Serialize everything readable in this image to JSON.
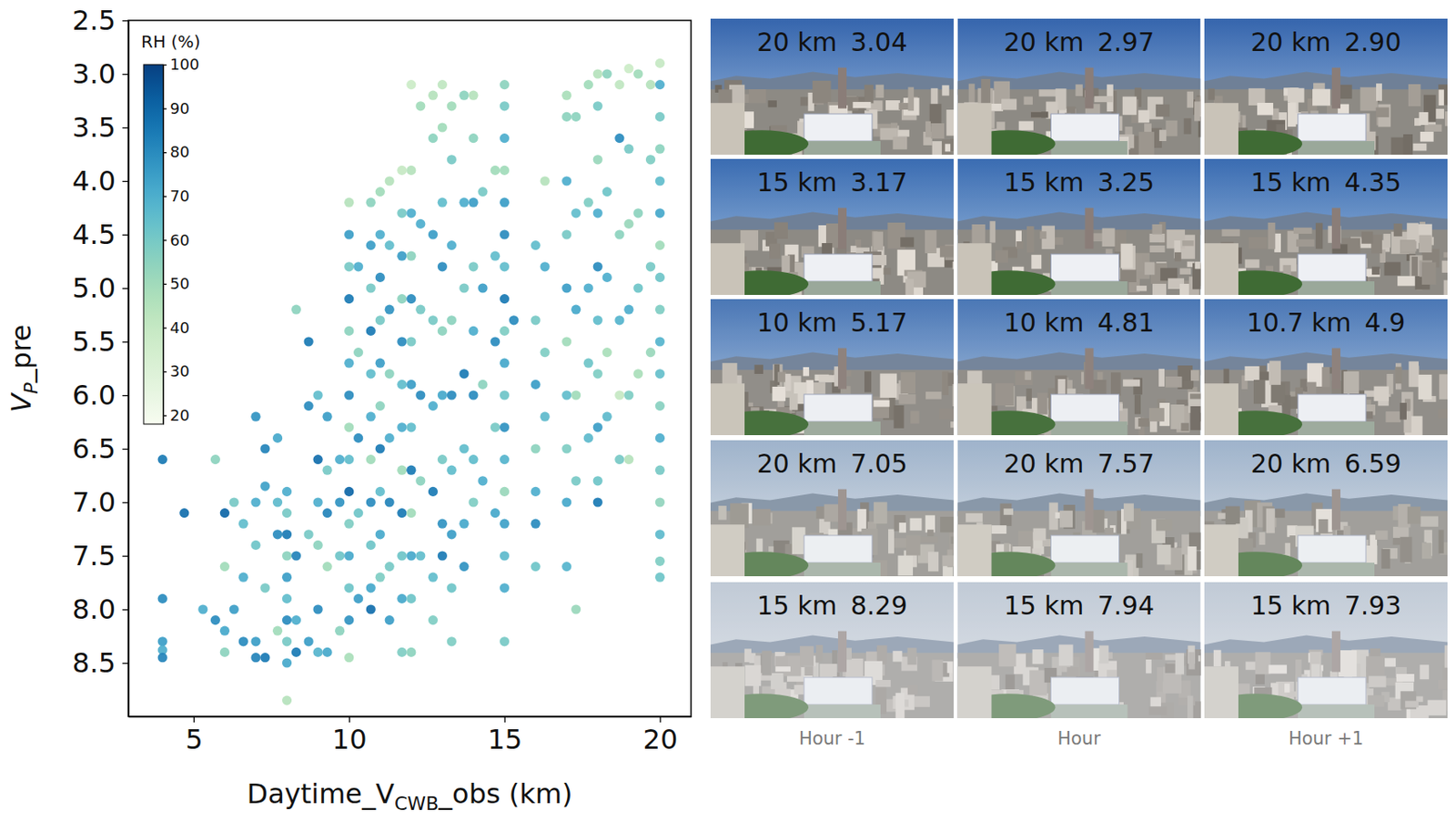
{
  "chart_data": {
    "type": "scatter",
    "xlabel": [
      "Daytime_V",
      "CWB",
      "_obs (km)"
    ],
    "ylabel": [
      "V",
      "P",
      "_pre"
    ],
    "xlim": [
      2.9,
      21.0
    ],
    "xticks": [
      5,
      10,
      15,
      20
    ],
    "ylim": [
      9.0,
      2.5
    ],
    "yticks": [
      2.5,
      {
        "value": 3,
        "label": "3.0"
      },
      3.5,
      {
        "value": 4,
        "label": "4.0"
      },
      4.5,
      {
        "value": 5,
        "label": "5.0"
      },
      5.5,
      {
        "value": 6,
        "label": "6.0"
      },
      6.5,
      {
        "value": 7,
        "label": "7.0"
      },
      7.5,
      {
        "value": 8,
        "label": "8.0"
      },
      8.5
    ],
    "colorbar": {
      "label": "RH (%)",
      "range": [
        18,
        100
      ],
      "ticks": [
        20,
        30,
        40,
        50,
        60,
        70,
        80,
        90,
        100
      ]
    },
    "x": [
      4,
      4,
      4,
      4,
      4,
      4.7,
      5.3,
      5.7,
      5.7,
      6,
      6,
      6,
      6,
      6.3,
      6.3,
      6.6,
      6.6,
      6.6,
      7,
      7,
      7,
      7,
      7,
      7.3,
      7.3,
      7.3,
      7.3,
      7.7,
      7.7,
      7.7,
      7.7,
      8,
      8,
      8,
      8,
      8,
      8,
      8,
      8,
      8,
      8,
      8.3,
      8.3,
      8.3,
      8.3,
      8.7,
      8.7,
      8.7,
      8.7,
      9,
      9,
      9,
      9,
      9,
      9,
      9.3,
      9.3,
      9.3,
      9.3,
      9.3,
      9.7,
      9.7,
      9.7,
      9.7,
      10,
      10,
      10,
      10,
      10,
      10,
      10,
      10,
      10,
      10,
      10,
      10,
      10,
      10,
      10,
      10.3,
      10.3,
      10.3,
      10.3,
      10.3,
      10.7,
      10.7,
      10.7,
      10.7,
      10.7,
      10.7,
      10.7,
      10.7,
      10.7,
      10.7,
      10.7,
      11,
      11,
      11,
      11,
      11,
      11,
      11,
      11,
      11,
      11,
      11.3,
      11.3,
      11.3,
      11.3,
      11.3,
      11.3,
      11.3,
      11.3,
      11.7,
      11.7,
      11.7,
      11.7,
      11.7,
      11.7,
      11.7,
      11.7,
      11.7,
      11.7,
      11.7,
      11.7,
      12,
      12,
      12,
      12,
      12,
      12,
      12,
      12,
      12,
      12,
      12,
      12,
      12,
      12.3,
      12.3,
      12.3,
      12.3,
      12.3,
      12.3,
      12.7,
      12.7,
      12.7,
      12.7,
      12.7,
      12.7,
      12.7,
      12.7,
      13,
      13,
      13,
      13,
      13,
      13,
      13,
      13,
      13,
      13.3,
      13.3,
      13.3,
      13.3,
      13.3,
      13.3,
      13.3,
      13.3,
      13.3,
      13.7,
      13.7,
      13.7,
      13.7,
      13.7,
      13.7,
      13.7,
      14,
      14,
      14,
      14,
      14,
      14,
      14,
      14,
      14.3,
      14.3,
      14.3,
      14.3,
      14.7,
      14.7,
      14.7,
      14.7,
      14.7,
      15,
      15,
      15,
      15,
      15,
      15,
      15,
      15,
      15,
      15,
      15,
      15,
      15,
      15,
      15,
      15,
      15,
      15,
      15.3,
      16,
      16,
      16,
      16,
      16,
      16,
      16,
      16.3,
      16.3,
      16.3,
      16.3,
      17,
      17,
      17,
      17,
      17,
      17,
      17,
      17,
      17,
      17,
      17.3,
      17.3,
      17.3,
      17.3,
      17.3,
      17.3,
      17.7,
      17.7,
      17.7,
      17.7,
      17.7,
      18,
      18,
      18,
      18,
      18,
      18,
      18,
      18,
      18,
      18,
      18.3,
      18.3,
      18.3,
      18.3,
      18.3,
      18.7,
      18.7,
      18.7,
      18.7,
      18.7,
      18.7,
      19,
      19,
      19,
      19,
      19,
      19,
      19.3,
      19.3,
      19.3,
      19.3,
      19.7,
      19.7,
      19.7,
      19.7,
      20,
      20,
      20,
      20,
      20,
      20,
      20,
      20,
      20,
      20,
      20,
      20,
      20,
      20,
      20,
      20,
      20,
      20
    ],
    "values": [
      6.6,
      7.9,
      8.3,
      8.38,
      8.45,
      7.1,
      8.0,
      6.6,
      8.1,
      7.1,
      7.6,
      8.2,
      8.4,
      7.0,
      8.0,
      7.2,
      8.3,
      7.7,
      6.2,
      7.0,
      7.4,
      8.3,
      8.45,
      6.5,
      6.85,
      7.8,
      8.45,
      6.4,
      7.0,
      7.3,
      8.2,
      6.9,
      7.1,
      7.3,
      7.5,
      7.7,
      7.9,
      8.1,
      8.3,
      8.5,
      8.85,
      5.2,
      7.5,
      8.1,
      8.4,
      5.5,
      6.1,
      7.3,
      8.3,
      6.0,
      6.6,
      7.0,
      7.4,
      8.0,
      8.4,
      6.2,
      6.7,
      7.1,
      7.6,
      8.4,
      6.6,
      7.0,
      7.5,
      8.2,
      4.2,
      4.5,
      4.8,
      5.1,
      5.4,
      5.7,
      6.0,
      6.3,
      6.6,
      6.9,
      7.2,
      7.5,
      7.8,
      8.1,
      8.45,
      4.8,
      5.6,
      6.4,
      7.1,
      7.9,
      4.2,
      4.6,
      5.0,
      5.4,
      5.8,
      6.2,
      6.6,
      7.0,
      7.4,
      7.8,
      8.0,
      4.1,
      4.5,
      4.9,
      5.3,
      5.7,
      6.1,
      6.5,
      6.9,
      7.3,
      7.7,
      4.0,
      4.6,
      5.2,
      5.8,
      6.4,
      7.0,
      7.6,
      8.1,
      3.9,
      4.3,
      4.7,
      5.1,
      5.5,
      5.9,
      6.3,
      6.7,
      7.1,
      7.5,
      7.9,
      8.4,
      3.1,
      3.9,
      4.3,
      4.7,
      5.1,
      5.5,
      5.9,
      6.3,
      6.7,
      7.1,
      7.5,
      7.9,
      8.4,
      3.3,
      4.4,
      5.2,
      6.0,
      6.8,
      7.5,
      3.2,
      3.6,
      4.5,
      5.3,
      6.1,
      6.9,
      7.7,
      8.1,
      3.1,
      3.5,
      4.2,
      4.8,
      5.4,
      6.0,
      6.6,
      7.2,
      7.5,
      3.3,
      3.8,
      4.6,
      5.3,
      6.0,
      6.7,
      7.3,
      7.8,
      8.3,
      3.2,
      4.2,
      5.0,
      5.8,
      6.5,
      7.2,
      7.6,
      3.2,
      3.6,
      4.2,
      4.8,
      5.4,
      6.0,
      6.6,
      7.0,
      4.1,
      5.0,
      5.9,
      6.8,
      3.9,
      4.7,
      5.5,
      6.3,
      7.1,
      3.1,
      3.3,
      3.6,
      3.9,
      4.2,
      4.5,
      4.8,
      5.1,
      5.4,
      5.7,
      6.0,
      6.3,
      6.6,
      6.9,
      7.2,
      7.5,
      7.8,
      8.3,
      5.3,
      4.6,
      5.3,
      5.9,
      6.5,
      6.9,
      7.2,
      7.6,
      4.0,
      4.8,
      5.6,
      6.2,
      3.2,
      3.4,
      4.0,
      4.5,
      5.0,
      5.5,
      6.0,
      6.5,
      7.0,
      7.6,
      3.4,
      4.3,
      5.2,
      6.0,
      6.8,
      8.0,
      3.1,
      4.2,
      5.0,
      5.7,
      6.4,
      3.0,
      3.3,
      3.8,
      4.3,
      4.8,
      5.3,
      5.8,
      6.3,
      6.8,
      7.0,
      3.0,
      4.1,
      4.9,
      5.6,
      6.2,
      3.1,
      3.6,
      4.5,
      5.3,
      6.0,
      6.6,
      2.95,
      3.7,
      4.4,
      5.2,
      6.0,
      6.6,
      3.0,
      4.3,
      5.0,
      5.8,
      3.1,
      3.8,
      4.8,
      5.6,
      2.9,
      3.1,
      3.4,
      3.7,
      4.0,
      4.3,
      4.6,
      4.9,
      5.2,
      5.5,
      5.8,
      6.1,
      6.4,
      6.7,
      7.0,
      7.3,
      7.55,
      7.7
    ],
    "rh": [
      85,
      80,
      75,
      70,
      82,
      88,
      70,
      55,
      80,
      90,
      50,
      72,
      55,
      60,
      75,
      65,
      80,
      70,
      78,
      70,
      62,
      75,
      82,
      82,
      74,
      60,
      85,
      72,
      66,
      80,
      50,
      70,
      60,
      85,
      55,
      75,
      65,
      80,
      60,
      72,
      45,
      55,
      82,
      70,
      85,
      85,
      80,
      60,
      75,
      65,
      88,
      70,
      55,
      80,
      68,
      75,
      60,
      82,
      50,
      72,
      70,
      78,
      62,
      55,
      45,
      75,
      60,
      85,
      55,
      70,
      80,
      50,
      65,
      90,
      58,
      72,
      62,
      78,
      48,
      70,
      55,
      80,
      62,
      75,
      55,
      75,
      60,
      85,
      65,
      70,
      50,
      80,
      62,
      72,
      88,
      50,
      70,
      80,
      60,
      75,
      55,
      85,
      65,
      72,
      58,
      45,
      65,
      78,
      55,
      70,
      82,
      60,
      75,
      40,
      60,
      75,
      55,
      80,
      65,
      70,
      50,
      85,
      62,
      72,
      58,
      38,
      45,
      70,
      55,
      80,
      60,
      75,
      65,
      85,
      50,
      72,
      62,
      55,
      50,
      70,
      60,
      80,
      55,
      65,
      45,
      55,
      75,
      60,
      70,
      85,
      65,
      58,
      42,
      50,
      65,
      80,
      55,
      72,
      60,
      78,
      85,
      50,
      60,
      70,
      55,
      80,
      65,
      75,
      62,
      58,
      55,
      70,
      60,
      85,
      65,
      72,
      78,
      45,
      55,
      75,
      60,
      70,
      80,
      65,
      58,
      60,
      75,
      55,
      70,
      50,
      65,
      80,
      60,
      72,
      55,
      60,
      70,
      50,
      75,
      80,
      65,
      85,
      58,
      72,
      62,
      78,
      68,
      52,
      74,
      66,
      70,
      60,
      80,
      65,
      60,
      75,
      55,
      70,
      80,
      62,
      45,
      70,
      58,
      66,
      48,
      55,
      70,
      60,
      75,
      50,
      65,
      58,
      72,
      68,
      55,
      65,
      72,
      50,
      60,
      52,
      50,
      58,
      70,
      62,
      66,
      45,
      60,
      52,
      70,
      80,
      65,
      58,
      75,
      62,
      85,
      55,
      62,
      70,
      48,
      66,
      42,
      80,
      55,
      68,
      40,
      60,
      38,
      60,
      52,
      70,
      58,
      45,
      50,
      55,
      62,
      48,
      45,
      58,
      60,
      52,
      40,
      70,
      60,
      55,
      65,
      72,
      50,
      62,
      58,
      68,
      64,
      56,
      70,
      60,
      54,
      66,
      58,
      62
    ]
  },
  "photo_grid": {
    "rows": [
      [
        {
          "distance": "20 km",
          "vp": "3.04"
        },
        {
          "distance": "20 km",
          "vp": "2.97"
        },
        {
          "distance": "20 km",
          "vp": "2.90"
        }
      ],
      [
        {
          "distance": "15 km",
          "vp": "3.17"
        },
        {
          "distance": "15 km",
          "vp": "3.25"
        },
        {
          "distance": "15 km",
          "vp": "4.35"
        }
      ],
      [
        {
          "distance": "10 km",
          "vp": "5.17"
        },
        {
          "distance": "10 km",
          "vp": "4.81"
        },
        {
          "distance": "10.7 km",
          "vp": "4.9"
        }
      ],
      [
        {
          "distance": "20 km",
          "vp": "7.05"
        },
        {
          "distance": "20 km",
          "vp": "7.57"
        },
        {
          "distance": "20 km",
          "vp": "6.59"
        }
      ],
      [
        {
          "distance": "15 km",
          "vp": "8.29"
        },
        {
          "distance": "15 km",
          "vp": "7.94"
        },
        {
          "distance": "15 km",
          "vp": "7.93"
        }
      ]
    ],
    "column_labels": [
      "Hour -1",
      "Hour",
      "Hour +1"
    ]
  }
}
